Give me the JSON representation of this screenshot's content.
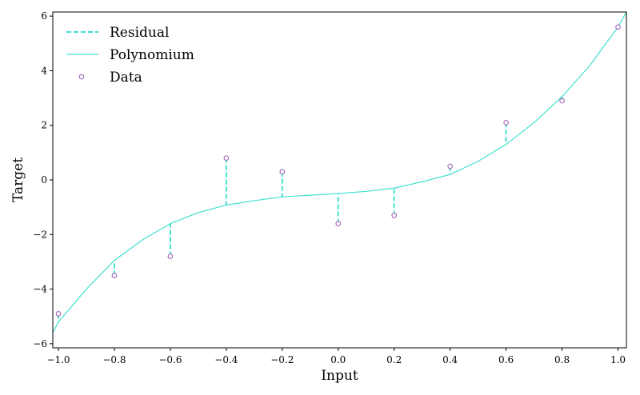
{
  "chart_data": {
    "type": "scatter",
    "xlabel": "Input",
    "ylabel": "Target",
    "xlim": [
      -1.02,
      1.03
    ],
    "ylim": [
      -6.15,
      6.15
    ],
    "xticks": [
      -1.0,
      -0.8,
      -0.6,
      -0.4,
      -0.2,
      0.0,
      0.2,
      0.4,
      0.6,
      0.8,
      1.0
    ],
    "xtick_labels": [
      "−1.0",
      "−0.8",
      "−0.6",
      "−0.4",
      "−0.2",
      "0.0",
      "0.2",
      "0.4",
      "0.6",
      "0.8",
      "1.0"
    ],
    "yticks": [
      -6,
      -4,
      -2,
      0,
      2,
      4,
      6
    ],
    "ytick_labels": [
      "−6",
      "−4",
      "−2",
      "0",
      "2",
      "4",
      "6"
    ],
    "grid": false,
    "legend_position": "top-left",
    "series": [
      {
        "name": "Residual",
        "kind": "residual-lines",
        "color": "#40e0d0",
        "style": "dashed",
        "x": [
          -1.0,
          -0.8,
          -0.6,
          -0.4,
          -0.2,
          0.0,
          0.2,
          0.4,
          0.6,
          0.8,
          1.0
        ],
        "y_from": [
          -4.9,
          -3.5,
          -2.8,
          0.8,
          0.3,
          -1.6,
          -1.3,
          0.5,
          2.1,
          2.9,
          5.6
        ],
        "y_to": [
          -5.2,
          -2.95,
          -1.6,
          -0.92,
          -0.62,
          -0.5,
          -0.3,
          0.2,
          1.3,
          3.05,
          5.6
        ]
      },
      {
        "name": "Polynomium",
        "kind": "line",
        "color": "#40e0d0",
        "style": "solid",
        "x": [
          -1.02,
          -1.0,
          -0.9,
          -0.8,
          -0.7,
          -0.6,
          -0.5,
          -0.4,
          -0.3,
          -0.2,
          -0.1,
          0.0,
          0.1,
          0.2,
          0.3,
          0.4,
          0.5,
          0.6,
          0.7,
          0.8,
          0.9,
          1.0,
          1.03
        ],
        "y": [
          -5.6,
          -5.2,
          -4.0,
          -2.95,
          -2.2,
          -1.6,
          -1.2,
          -0.92,
          -0.76,
          -0.62,
          -0.56,
          -0.5,
          -0.42,
          -0.3,
          -0.07,
          0.2,
          0.68,
          1.3,
          2.1,
          3.05,
          4.2,
          5.6,
          6.15
        ]
      },
      {
        "name": "Data",
        "kind": "scatter",
        "color": "#9b59b6",
        "x": [
          -1.0,
          -0.8,
          -0.6,
          -0.4,
          -0.2,
          0.0,
          0.2,
          0.4,
          0.6,
          0.8,
          1.0
        ],
        "y": [
          -4.9,
          -3.5,
          -2.8,
          0.8,
          0.3,
          -1.6,
          -1.3,
          0.5,
          2.1,
          2.9,
          5.6
        ]
      }
    ]
  }
}
